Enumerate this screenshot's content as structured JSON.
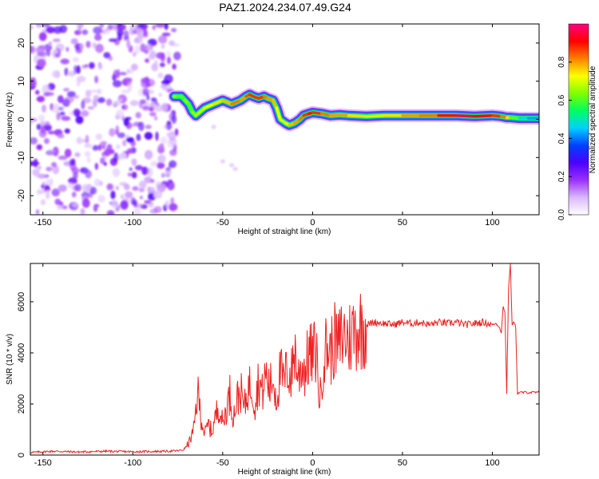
{
  "title": "PAZ1.2024.234.07.49.G24",
  "chart_data": [
    {
      "type": "heatmap",
      "xlabel": "Height of straight line (km)",
      "ylabel": "Frequency (Hz)",
      "xlim": [
        -157,
        126
      ],
      "ylim": [
        -25,
        25
      ],
      "xticks": [
        -150,
        -100,
        -50,
        0,
        50,
        100
      ],
      "yticks": [
        -20,
        -10,
        0,
        10,
        20
      ],
      "colorbar": {
        "label": "Normalized spectral amplitude",
        "range": [
          0,
          1
        ],
        "ticks": [
          "0.0",
          "0.2",
          "0.4",
          "0.6",
          "0.8"
        ],
        "colors": [
          "#ffffff",
          "#d9b8ff",
          "#9b30ff",
          "#4b00ff",
          "#0040ff",
          "#00d0ff",
          "#00ff60",
          "#80ff00",
          "#ffff00",
          "#ff8000",
          "#ff0000",
          "#ff0080"
        ]
      },
      "noise_region_x": [
        -157,
        -77
      ],
      "frequency_track": {
        "x": [
          -77,
          -75,
          -73,
          -71,
          -69,
          -67,
          -65,
          -60,
          -55,
          -50,
          -45,
          -40,
          -37,
          -35,
          -33,
          -30,
          -27,
          -25,
          -22,
          -20,
          -18,
          -15,
          -13,
          -10,
          -7,
          -5,
          -2,
          0,
          5,
          10,
          15,
          20,
          30,
          40,
          50,
          60,
          70,
          80,
          90,
          100,
          105,
          108,
          110,
          115,
          120,
          126
        ],
        "y": [
          6,
          6,
          6,
          5,
          4,
          2,
          1,
          3,
          4,
          5,
          4,
          5,
          6,
          6.5,
          6,
          5.5,
          6,
          5.5,
          5,
          3,
          0,
          -1,
          -1.5,
          -1,
          0,
          1,
          1.5,
          1.8,
          1.5,
          1,
          1.2,
          1,
          0.8,
          1,
          1,
          1,
          1,
          1,
          0.8,
          1,
          0.8,
          0.5,
          0.5,
          0.3,
          0.3,
          0.3
        ]
      },
      "track_intensity": [
        0.6,
        0.7,
        0.5,
        0.7,
        0.6,
        0.6,
        0.7,
        0.65,
        0.8,
        0.7,
        0.85,
        0.8,
        0.8,
        0.9,
        0.85,
        0.9,
        0.85,
        0.8,
        0.8,
        0.75,
        0.7,
        0.7,
        0.75,
        0.8,
        0.8,
        0.85,
        0.9,
        0.9,
        0.85,
        0.8,
        0.8,
        0.8,
        0.7,
        0.7,
        0.8,
        0.8,
        0.85,
        0.95,
        0.95,
        0.9,
        0.85,
        0.8,
        0.7,
        0.5,
        0.45,
        0.4
      ]
    },
    {
      "type": "line",
      "xlabel": "Height of straight line (km)",
      "ylabel": "SNR (10 * v/v)",
      "xlim": [
        -157,
        126
      ],
      "ylim": [
        0,
        7500
      ],
      "xticks": [
        -150,
        -100,
        -50,
        0,
        50,
        100
      ],
      "yticks": [
        0,
        2000,
        4000,
        6000
      ],
      "color": "#ee2222",
      "series": [
        {
          "x": [
            -157,
            -145,
            -130,
            -115,
            -100,
            -90,
            -80,
            -75,
            -72,
            -70,
            -68,
            -66,
            -64,
            -62,
            -60,
            -58,
            -56,
            -54,
            -52,
            -50,
            -48,
            -46,
            -44,
            -42,
            -40,
            -38,
            -36,
            -34,
            -32,
            -30,
            -28,
            -26,
            -24,
            -22,
            -20,
            -18,
            -16,
            -14,
            -12,
            -10,
            -8,
            -6,
            -4,
            -2,
            0,
            2,
            4,
            6,
            8,
            10,
            12,
            14,
            16,
            18,
            20,
            22,
            24,
            26,
            28,
            30,
            32,
            35,
            40,
            45,
            50,
            55,
            60,
            65,
            70,
            75,
            80,
            85,
            90,
            95,
            100,
            102,
            104,
            105,
            106,
            107,
            108,
            109,
            110,
            111,
            112,
            113,
            114,
            115,
            120,
            126
          ],
          "y": [
            100,
            150,
            120,
            150,
            130,
            140,
            150,
            170,
            200,
            350,
            600,
            1000,
            2500,
            1500,
            800,
            1200,
            900,
            1500,
            2000,
            1200,
            1800,
            2400,
            1500,
            2200,
            2500,
            1800,
            2600,
            2800,
            2000,
            3000,
            2400,
            3200,
            2600,
            3000,
            2200,
            3300,
            2800,
            3400,
            3000,
            4200,
            3000,
            3600,
            3300,
            4000,
            3800,
            4200,
            2000,
            3800,
            4300,
            4000,
            4500,
            4200,
            4600,
            4700,
            4500,
            4800,
            4900,
            5000,
            5000,
            5100,
            5150,
            5200,
            5150,
            5100,
            5200,
            5150,
            5200,
            5100,
            5200,
            5150,
            5200,
            5100,
            5150,
            5200,
            5100,
            5150,
            5000,
            4800,
            5800,
            5600,
            2400,
            6500,
            7500,
            5100,
            5200,
            5000,
            2400,
            2450,
            2450,
            2450
          ]
        }
      ]
    }
  ]
}
